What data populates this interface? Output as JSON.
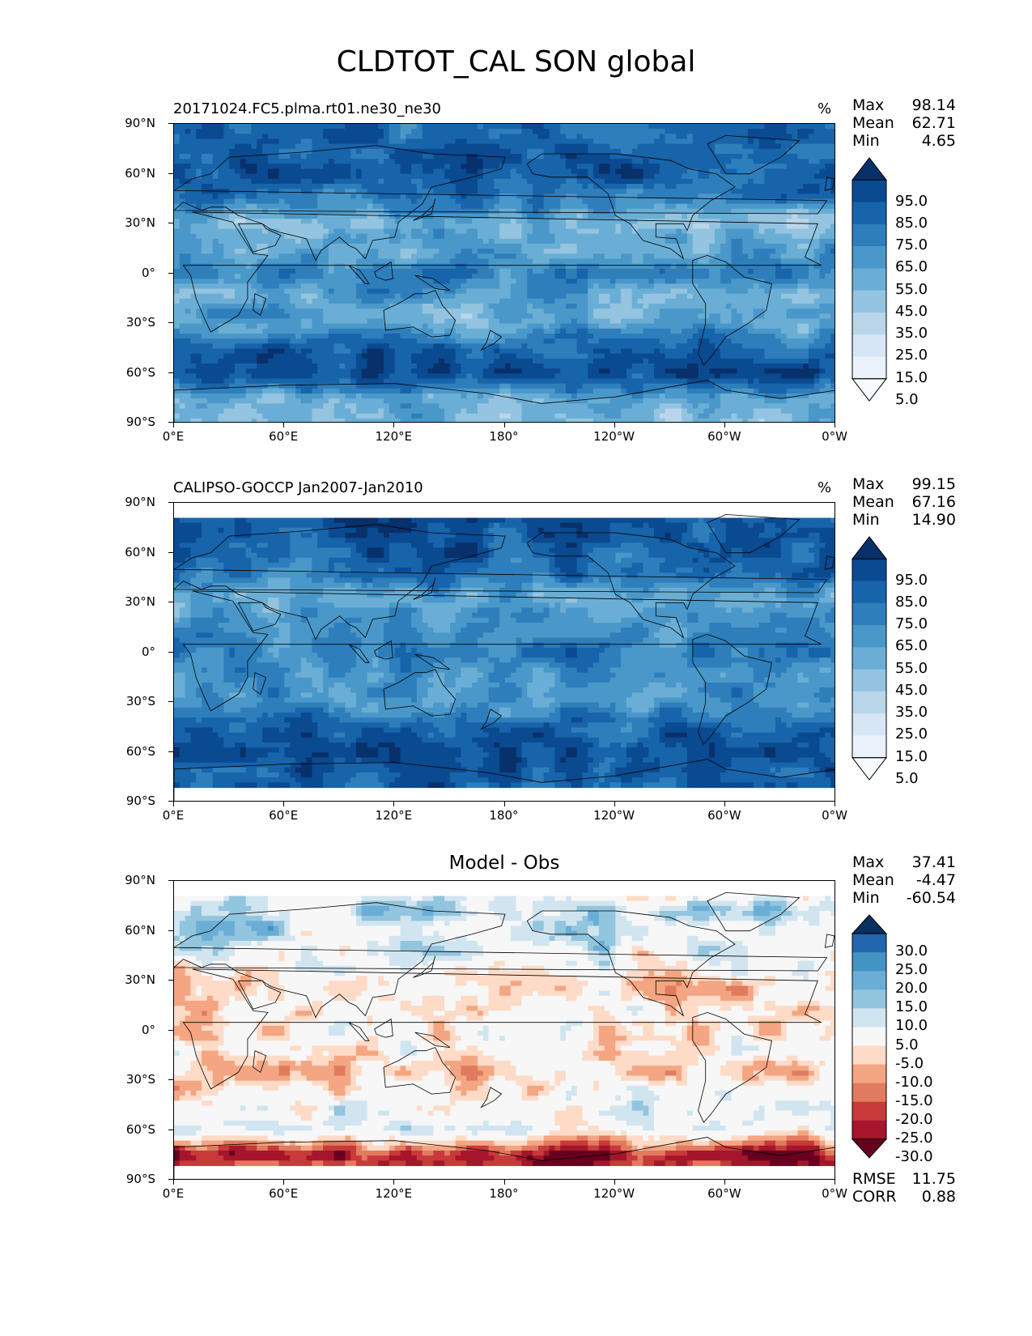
{
  "figure_title": "CLDTOT_CAL SON global",
  "panels": [
    {
      "title": "20171024.FC5.plma.rt01.ne30_ne30",
      "title_position": "left",
      "units": "%",
      "stats": [
        {
          "label": "Max",
          "value": "98.14"
        },
        {
          "label": "Mean",
          "value": "62.71"
        },
        {
          "label": "Min",
          "value": "4.65"
        }
      ],
      "colorbar": {
        "labels": [
          "95.0",
          "85.0",
          "75.0",
          "65.0",
          "55.0",
          "45.0",
          "35.0",
          "25.0",
          "15.0",
          "5.0"
        ],
        "colors": [
          "#08306b",
          "#0a4a90",
          "#1764ab",
          "#2e7ebc",
          "#4a98c9",
          "#6aaed6",
          "#94c4df",
          "#b9d6ea",
          "#d6e6f4",
          "#eaf2fb",
          "#f7fbff"
        ]
      }
    },
    {
      "title": "CALIPSO-GOCCP Jan2007-Jan2010",
      "title_position": "left",
      "units": "%",
      "stats": [
        {
          "label": "Max",
          "value": "99.15"
        },
        {
          "label": "Mean",
          "value": "67.16"
        },
        {
          "label": "Min",
          "value": "14.90"
        }
      ],
      "colorbar": {
        "labels": [
          "95.0",
          "85.0",
          "75.0",
          "65.0",
          "55.0",
          "45.0",
          "35.0",
          "25.0",
          "15.0",
          "5.0"
        ],
        "colors": [
          "#08306b",
          "#0a4a90",
          "#1764ab",
          "#2e7ebc",
          "#4a98c9",
          "#6aaed6",
          "#94c4df",
          "#b9d6ea",
          "#d6e6f4",
          "#eaf2fb",
          "#f7fbff"
        ]
      }
    },
    {
      "title": "Model - Obs",
      "title_position": "center",
      "units": "",
      "stats": [
        {
          "label": "Max",
          "value": "37.41"
        },
        {
          "label": "Mean",
          "value": "-4.47"
        },
        {
          "label": "Min",
          "value": "-60.54"
        }
      ],
      "extra_stats": [
        {
          "label": "RMSE",
          "value": "11.75"
        },
        {
          "label": "CORR",
          "value": "0.88"
        }
      ],
      "colorbar": {
        "labels": [
          "30.0",
          "25.0",
          "20.0",
          "15.0",
          "10.0",
          "5.0",
          "-5.0",
          "-10.0",
          "-15.0",
          "-20.0",
          "-25.0",
          "-30.0"
        ],
        "colors": [
          "#053061",
          "#2166ac",
          "#4393c3",
          "#6aaed6",
          "#92c5de",
          "#d1e5f0",
          "#f7f7f7",
          "#fddbc7",
          "#f4a582",
          "#e07b60",
          "#c83a3a",
          "#a5152b",
          "#67001f"
        ]
      }
    }
  ],
  "axes": {
    "y_ticks": [
      "90°N",
      "60°N",
      "30°N",
      "0°",
      "30°S",
      "60°S",
      "90°S"
    ],
    "x_ticks": [
      "0°E",
      "60°E",
      "120°E",
      "180°",
      "120°W",
      "60°W",
      "0°W"
    ]
  },
  "chart_data": [
    {
      "type": "heatmap",
      "title": "20171024.FC5.plma.rt01.ne30_ne30",
      "units": "%",
      "xlim": [
        0,
        360
      ],
      "ylim": [
        -90,
        90
      ],
      "stats": {
        "max": 98.14,
        "mean": 62.71,
        "min": 4.65
      },
      "levels": [
        5,
        15,
        25,
        35,
        45,
        55,
        65,
        75,
        85,
        95
      ],
      "zonal_profile": {
        "lat": [
          90,
          75,
          60,
          45,
          30,
          15,
          0,
          -15,
          -30,
          -45,
          -60,
          -75,
          -90
        ],
        "value": [
          78,
          82,
          85,
          72,
          45,
          58,
          70,
          55,
          52,
          80,
          93,
          50,
          45
        ]
      }
    },
    {
      "type": "heatmap",
      "title": "CALIPSO-GOCCP Jan2007-Jan2010",
      "units": "%",
      "xlim": [
        0,
        360
      ],
      "ylim": [
        -90,
        90
      ],
      "stats": {
        "max": 99.15,
        "mean": 67.16,
        "min": 14.9
      },
      "levels": [
        5,
        15,
        25,
        35,
        45,
        55,
        65,
        75,
        85,
        95
      ],
      "zonal_profile": {
        "lat": [
          82,
          75,
          60,
          45,
          30,
          15,
          0,
          -15,
          -30,
          -45,
          -60,
          -75,
          -82
        ],
        "value": [
          88,
          82,
          82,
          72,
          52,
          60,
          70,
          62,
          60,
          80,
          90,
          82,
          80
        ]
      }
    },
    {
      "type": "heatmap",
      "title": "Model - Obs",
      "xlim": [
        0,
        360
      ],
      "ylim": [
        -90,
        90
      ],
      "stats": {
        "max": 37.41,
        "mean": -4.47,
        "min": -60.54,
        "rmse": 11.75,
        "corr": 0.88
      },
      "levels": [
        -30,
        -25,
        -20,
        -15,
        -10,
        -5,
        5,
        10,
        15,
        20,
        25,
        30
      ],
      "zonal_profile": {
        "lat": [
          82,
          75,
          60,
          45,
          30,
          15,
          0,
          -15,
          -30,
          -45,
          -60,
          -75,
          -82
        ],
        "value": [
          -2,
          5,
          8,
          2,
          -8,
          -4,
          -2,
          -6,
          -6,
          1,
          2,
          -28,
          -25
        ]
      }
    }
  ]
}
